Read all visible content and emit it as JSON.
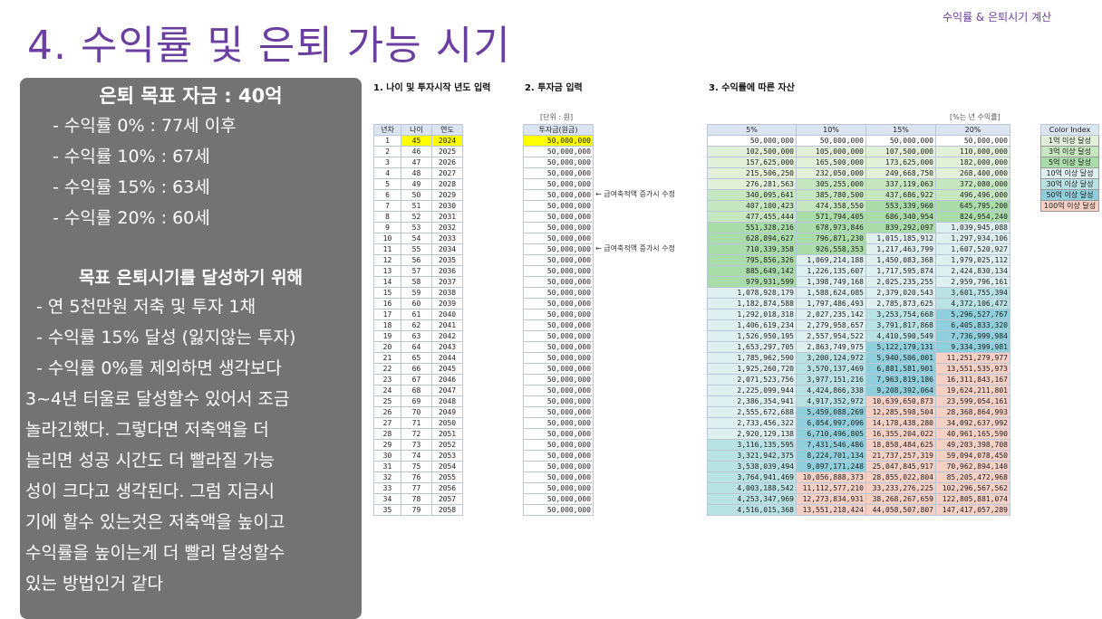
{
  "header": {
    "title": "수익률 & 은퇴시기 계산"
  },
  "slide": {
    "title": "4. 수익률 및 은퇴 가능 시기"
  },
  "summary": {
    "goal": "은퇴 목표 자금 : 40억",
    "rates": [
      "- 수익률   0% : 77세 이후",
      "- 수익률 10% : 67세",
      "- 수익률 15% : 63세",
      "- 수익률 20% : 60세"
    ],
    "heading2": "목표 은퇴시기를 달성하기 위해",
    "plans": [
      "- 연 5천만원 저축 및 투자 1채",
      "- 수익률 15% 달성 (잃지않는 투자)",
      "- 수익률 0%를 제외하면 생각보다"
    ],
    "paragraph": [
      "3~4년 터울로 달성할수 있어서 조금",
      "놀라긴했다. 그렇다면 저축액을 더",
      "늘리면 성공 시간도 더 빨라질 가능",
      "성이 크다고 생각된다. 그럼 지금시",
      "기에 할수 있는것은 저축액을 높이고",
      "수익률을 높이는게 더 빨리 달성할수",
      "있는 방법인거 같다"
    ]
  },
  "sections": {
    "s1": "1. 나이 및 투자시작 년도 입력",
    "s2": "2. 투자금 입력",
    "s3": "3. 수익률에 따른 자산"
  },
  "units": {
    "investment": "[단위 : 원]",
    "rate": "[%는 년 수익률]"
  },
  "age_table": {
    "headers": [
      "년차",
      "나이",
      "연도"
    ],
    "rows": [
      [
        "1",
        "45",
        "2024"
      ],
      [
        "2",
        "46",
        "2025"
      ],
      [
        "3",
        "47",
        "2026"
      ],
      [
        "4",
        "48",
        "2027"
      ],
      [
        "5",
        "49",
        "2028"
      ],
      [
        "6",
        "50",
        "2029"
      ],
      [
        "7",
        "51",
        "2030"
      ],
      [
        "8",
        "52",
        "2031"
      ],
      [
        "9",
        "53",
        "2032"
      ],
      [
        "10",
        "54",
        "2033"
      ],
      [
        "11",
        "55",
        "2034"
      ],
      [
        "12",
        "56",
        "2035"
      ],
      [
        "13",
        "57",
        "2036"
      ],
      [
        "14",
        "58",
        "2037"
      ],
      [
        "15",
        "59",
        "2038"
      ],
      [
        "16",
        "60",
        "2039"
      ],
      [
        "17",
        "61",
        "2040"
      ],
      [
        "18",
        "62",
        "2041"
      ],
      [
        "19",
        "63",
        "2042"
      ],
      [
        "20",
        "64",
        "2043"
      ],
      [
        "21",
        "65",
        "2044"
      ],
      [
        "22",
        "66",
        "2045"
      ],
      [
        "23",
        "67",
        "2046"
      ],
      [
        "24",
        "68",
        "2047"
      ],
      [
        "25",
        "69",
        "2048"
      ],
      [
        "26",
        "70",
        "2049"
      ],
      [
        "27",
        "71",
        "2050"
      ],
      [
        "28",
        "72",
        "2051"
      ],
      [
        "29",
        "73",
        "2052"
      ],
      [
        "30",
        "74",
        "2053"
      ],
      [
        "31",
        "75",
        "2054"
      ],
      [
        "32",
        "76",
        "2055"
      ],
      [
        "33",
        "77",
        "2056"
      ],
      [
        "34",
        "78",
        "2057"
      ],
      [
        "35",
        "79",
        "2058"
      ]
    ]
  },
  "investment_table": {
    "header": "투자금(원금)",
    "value": "50,000,000",
    "notes": [
      {
        "row": 5,
        "text": "← 급여축적액 증가시 수정"
      },
      {
        "row": 10,
        "text": "← 급여축적액 증가시 수정"
      }
    ]
  },
  "asset_table": {
    "headers": [
      "5%",
      "10%",
      "15%",
      "20%"
    ],
    "rows": [
      [
        "50,000,000",
        "50,000,000",
        "50,000,000",
        "50,000,000"
      ],
      [
        "102,500,000",
        "105,000,000",
        "107,500,000",
        "110,000,000"
      ],
      [
        "157,625,000",
        "165,500,000",
        "173,625,000",
        "182,000,000"
      ],
      [
        "215,506,250",
        "232,050,000",
        "249,668,750",
        "268,400,000"
      ],
      [
        "276,281,563",
        "305,255,000",
        "337,119,063",
        "372,080,000"
      ],
      [
        "340,095,641",
        "385,780,500",
        "437,686,922",
        "496,496,000"
      ],
      [
        "407,100,423",
        "474,358,550",
        "553,339,960",
        "645,795,200"
      ],
      [
        "477,455,444",
        "571,794,405",
        "686,340,954",
        "824,954,240"
      ],
      [
        "551,328,216",
        "678,973,846",
        "839,292,097",
        "1,039,945,088"
      ],
      [
        "628,894,627",
        "796,871,230",
        "1,015,185,912",
        "1,297,934,106"
      ],
      [
        "710,339,358",
        "926,558,353",
        "1,217,463,799",
        "1,607,520,927"
      ],
      [
        "795,856,326",
        "1,069,214,188",
        "1,450,083,368",
        "1,979,025,112"
      ],
      [
        "885,649,142",
        "1,226,135,607",
        "1,717,595,874",
        "2,424,830,134"
      ],
      [
        "979,931,599",
        "1,398,749,168",
        "2,025,235,255",
        "2,959,796,161"
      ],
      [
        "1,078,928,179",
        "1,588,624,085",
        "2,379,020,543",
        "3,601,755,394"
      ],
      [
        "1,182,874,588",
        "1,797,486,493",
        "2,785,873,625",
        "4,372,106,472"
      ],
      [
        "1,292,018,318",
        "2,027,235,142",
        "3,253,754,668",
        "5,296,527,767"
      ],
      [
        "1,406,619,234",
        "2,279,958,657",
        "3,791,817,868",
        "6,405,833,320"
      ],
      [
        "1,526,950,195",
        "2,557,954,522",
        "4,410,590,549",
        "7,736,999,984"
      ],
      [
        "1,653,297,705",
        "2,863,749,975",
        "5,122,179,131",
        "9,334,399,981"
      ],
      [
        "1,785,962,590",
        "3,200,124,972",
        "5,940,506,001",
        "11,251,279,977"
      ],
      [
        "1,925,260,720",
        "3,570,137,469",
        "6,881,581,901",
        "13,551,535,973"
      ],
      [
        "2,071,523,756",
        "3,977,151,216",
        "7,963,819,186",
        "16,311,843,167"
      ],
      [
        "2,225,099,944",
        "4,424,866,338",
        "9,208,392,064",
        "19,624,211,801"
      ],
      [
        "2,386,354,941",
        "4,917,352,972",
        "10,639,650,873",
        "23,599,054,161"
      ],
      [
        "2,555,672,688",
        "5,459,088,269",
        "12,285,598,504",
        "28,368,864,993"
      ],
      [
        "2,733,456,322",
        "6,054,997,096",
        "14,178,438,280",
        "34,092,637,992"
      ],
      [
        "2,920,129,138",
        "6,710,496,805",
        "16,355,204,022",
        "40,961,165,590"
      ],
      [
        "3,116,135,595",
        "7,431,546,486",
        "18,858,484,625",
        "49,203,398,708"
      ],
      [
        "3,321,942,375",
        "8,224,701,134",
        "21,737,257,319",
        "59,094,078,450"
      ],
      [
        "3,538,039,494",
        "9,097,171,248",
        "25,047,845,917",
        "70,962,894,140"
      ],
      [
        "3,764,941,469",
        "10,056,888,373",
        "28,855,022,804",
        "85,205,472,968"
      ],
      [
        "4,003,188,542",
        "11,112,577,210",
        "33,233,276,225",
        "102,296,567,562"
      ],
      [
        "4,253,347,969",
        "12,273,834,931",
        "38,268,267,659",
        "122,805,881,074"
      ],
      [
        "4,516,015,368",
        "13,551,218,424",
        "44,058,507,807",
        "147,417,057,289"
      ]
    ]
  },
  "legend": {
    "header": "Color Index",
    "items": [
      {
        "label": "1억 이상 달성",
        "color": "#e2f0d9"
      },
      {
        "label": "3억 이상 달성",
        "color": "#c6e7bf"
      },
      {
        "label": "5억 이상 달성",
        "color": "#a9dca8"
      },
      {
        "label": "10억 이상 달성",
        "color": "#dff0f0"
      },
      {
        "label": "30억 이상 달성",
        "color": "#b9e2e4"
      },
      {
        "label": "50억 이상 달성",
        "color": "#8ecfdb"
      },
      {
        "label": "100억 이상 달성",
        "color": "#f6cfc5"
      }
    ],
    "base_color": "#ffffff"
  }
}
